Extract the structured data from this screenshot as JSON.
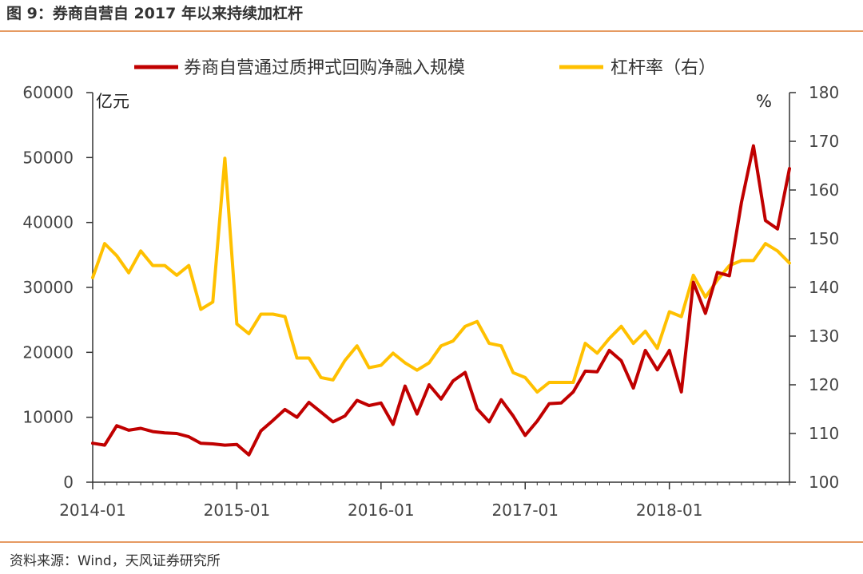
{
  "figure": {
    "title": "图 9：券商自营自 2017 年以来持续加杠杆",
    "source": "资料来源：Wind，天风证券研究所"
  },
  "colors": {
    "series1": "#c00000",
    "series2": "#ffc000",
    "rule": "#e69a62"
  },
  "chart_data": {
    "type": "line",
    "title": "",
    "x_labels": [
      "2014-01",
      "2015-01",
      "2016-01",
      "2017-01",
      "2018-01"
    ],
    "x_label_indices": [
      0,
      12,
      24,
      36,
      48
    ],
    "left_axis": {
      "unit": "亿元",
      "ylim": [
        0,
        60000
      ],
      "ticks": [
        0,
        10000,
        20000,
        30000,
        40000,
        50000,
        60000
      ]
    },
    "right_axis": {
      "unit": "%",
      "ylim": [
        100,
        180
      ],
      "ticks": [
        100,
        110,
        120,
        130,
        140,
        150,
        160,
        170,
        180
      ]
    },
    "series": [
      {
        "name": "券商自营通过质押式回购净融入规模",
        "axis": "left",
        "color": "#c00000",
        "values": [
          6000,
          5700,
          8700,
          8000,
          8300,
          7800,
          7600,
          7500,
          7000,
          6000,
          5900,
          5700,
          5800,
          4200,
          7900,
          9500,
          11200,
          10000,
          12300,
          10800,
          9300,
          10200,
          12600,
          11800,
          12200,
          8900,
          14800,
          10500,
          15000,
          12800,
          15600,
          16900,
          11300,
          9300,
          12700,
          10200,
          7200,
          9400,
          12100,
          12200,
          13900,
          17100,
          17000,
          20300,
          18700,
          14500,
          20300,
          17300,
          20300,
          13900,
          30800,
          26000,
          32300,
          31800,
          43100,
          51800,
          40300,
          39000,
          48300
        ]
      },
      {
        "name": "杠杆率（右）",
        "axis": "right",
        "color": "#ffc000",
        "values": [
          142,
          149,
          146.5,
          143,
          147.5,
          144.5,
          144.5,
          142.5,
          144.5,
          135.5,
          137,
          166.5,
          132.5,
          130.5,
          134.5,
          134.5,
          134,
          125.5,
          125.5,
          121.5,
          121,
          125,
          128,
          123.5,
          124,
          126.5,
          124.5,
          123,
          124.5,
          128,
          129,
          132,
          133,
          128.5,
          128,
          122.5,
          121.5,
          118.5,
          120.5,
          120.5,
          120.5,
          128.5,
          126.5,
          129.5,
          132,
          128.5,
          131,
          127.5,
          135,
          134,
          142.5,
          138,
          141.5,
          144.5,
          145.5,
          145.5,
          149,
          147.5,
          145
        ]
      }
    ]
  }
}
